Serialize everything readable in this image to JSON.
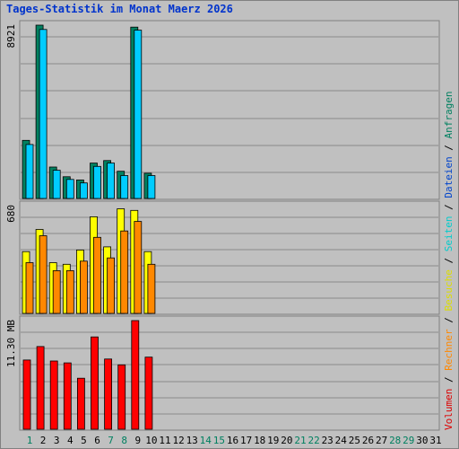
{
  "title": "Tages-Statistik im Monat Maerz 2026",
  "chart_data": {
    "type": "bar",
    "title": "Tages-Statistik im Monat Maerz 2026",
    "x": [
      1,
      2,
      3,
      4,
      5,
      6,
      7,
      8,
      9,
      10,
      11,
      12,
      13,
      14,
      15,
      16,
      17,
      18,
      19,
      20,
      21,
      22,
      23,
      24,
      25,
      26,
      27,
      28,
      29,
      30,
      31
    ],
    "weekend_days": [
      1,
      7,
      8,
      14,
      15,
      21,
      22,
      28,
      29
    ],
    "panels": [
      {
        "name": "top",
        "max_label": "8921",
        "ymax": 8921,
        "series": [
          {
            "name": "Anfragen",
            "color": "#008060",
            "values": [
              2990,
              8921,
              1620,
              1120,
              950,
              1820,
              1950,
              1400,
              8820,
              1300
            ]
          },
          {
            "name": "Dateien",
            "color": "#00ccff",
            "values": [
              2780,
              8700,
              1450,
              980,
              800,
              1650,
              1820,
              1180,
              8660,
              1180
            ]
          },
          {
            "name": "Seiten",
            "color": "#00e0e0",
            "values": []
          }
        ]
      },
      {
        "name": "middle",
        "max_label": "680",
        "ymax": 680,
        "series": [
          {
            "name": "Besuche",
            "color": "#ffff00",
            "values": [
              390,
              530,
              320,
              310,
              400,
              610,
              420,
              660,
              650,
              390
            ]
          },
          {
            "name": "Rechner",
            "color": "#ff8800",
            "values": [
              320,
              490,
              270,
              270,
              330,
              480,
              350,
              520,
              580,
              310
            ]
          }
        ]
      },
      {
        "name": "bottom",
        "max_label": "11.30 MB",
        "ymax": 11.3,
        "series": [
          {
            "name": "Volumen",
            "color": "#ff0000",
            "values": [
              7.2,
              8.6,
              7.1,
              6.9,
              5.3,
              9.6,
              7.3,
              6.7,
              11.3,
              7.5
            ]
          }
        ]
      }
    ],
    "legend": {
      "placement": "right, vertical",
      "items": [
        {
          "label": "Volumen",
          "color": "#dd0000"
        },
        {
          "label": "Rechner",
          "color": "#ff8800"
        },
        {
          "label": "Besuche",
          "color": "#dddd00"
        },
        {
          "label": "Seiten",
          "color": "#00cccc"
        },
        {
          "label": "Dateien",
          "color": "#0044cc"
        },
        {
          "label": "Anfragen",
          "color": "#008060"
        }
      ],
      "separator": "/"
    }
  }
}
